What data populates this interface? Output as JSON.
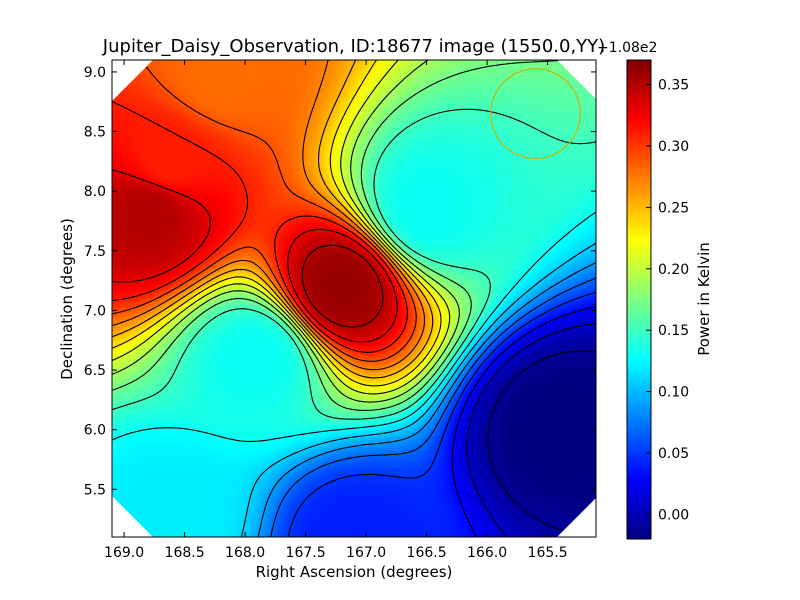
{
  "chart_data": {
    "type": "heatmap",
    "title": "Jupiter_Daisy_Observation, ID:18677 image (1550.0,YY)",
    "xlabel": "Right Ascension (degrees)",
    "ylabel": "Declination (degrees)",
    "xlim": [
      169.1,
      165.1
    ],
    "ylim": [
      5.1,
      9.1
    ],
    "x_ticks": [
      "169.0",
      "168.5",
      "168.0",
      "167.5",
      "167.0",
      "166.5",
      "166.0",
      "165.5"
    ],
    "x_tick_values": [
      169.0,
      168.5,
      168.0,
      167.5,
      167.0,
      166.5,
      166.0,
      165.5
    ],
    "y_ticks": [
      "5.5",
      "6.0",
      "6.5",
      "7.0",
      "7.5",
      "8.0",
      "8.5",
      "9.0"
    ],
    "y_tick_values": [
      5.5,
      6.0,
      6.5,
      7.0,
      7.5,
      8.0,
      8.5,
      9.0
    ],
    "colormap": "jet",
    "colorbar": {
      "label": "Power in Kelvin",
      "offset_text": "+1.08e2",
      "range": [
        -0.02,
        0.37
      ],
      "ticks": [
        "0.00",
        "0.05",
        "0.10",
        "0.15",
        "0.20",
        "0.25",
        "0.30",
        "0.35"
      ],
      "tick_values": [
        0.0,
        0.05,
        0.1,
        0.15,
        0.2,
        0.25,
        0.3,
        0.35
      ]
    },
    "features": [
      {
        "ra": 168.8,
        "dec": 7.85,
        "value": 0.35
      },
      {
        "ra": 168.65,
        "dec": 8.25,
        "value": 0.31
      },
      {
        "ra": 167.2,
        "dec": 7.2,
        "value": 0.36
      },
      {
        "ra": 167.9,
        "dec": 6.6,
        "value": 0.13
      },
      {
        "ra": 166.5,
        "dec": 7.85,
        "value": 0.13
      },
      {
        "ra": 165.4,
        "dec": 6.0,
        "value": -0.02
      },
      {
        "ra": 167.1,
        "dec": 5.05,
        "value": 0.04
      },
      {
        "ra": 168.6,
        "dec": 5.3,
        "value": 0.12
      },
      {
        "ra": 168.2,
        "dec": 9.0,
        "value": 0.28
      }
    ],
    "beam_circle": {
      "ra": 165.6,
      "dec": 8.65,
      "radius_deg": 0.37,
      "color": "#c8b400"
    }
  }
}
